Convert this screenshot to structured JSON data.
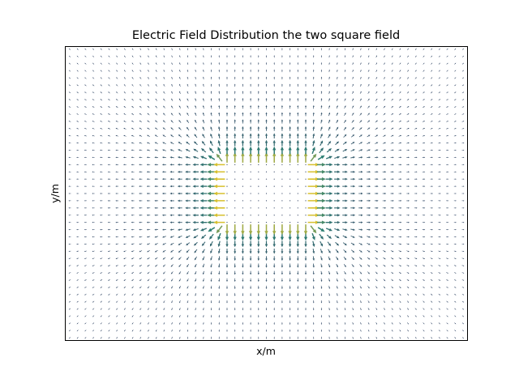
{
  "chart_data": {
    "type": "quiver",
    "title": "Electric Field Distribution the two square field",
    "xlabel": "x/m",
    "ylabel": "y/m",
    "xlim": [
      -1,
      1
    ],
    "ylim": [
      -1,
      1
    ],
    "ticks": "none",
    "grid": false,
    "legend": "none",
    "grid_points": {
      "nx": 51,
      "ny": 41
    },
    "source": {
      "shape": "square",
      "center": [
        0,
        0
      ],
      "half_width": 0.2,
      "half_height": 0.2,
      "field_inside": 0
    },
    "colormap": {
      "name": "viridis",
      "low": "#3b4b6b",
      "mid": "#2c7f73",
      "high": "#d7c02f"
    },
    "frame_color": "#000000"
  }
}
